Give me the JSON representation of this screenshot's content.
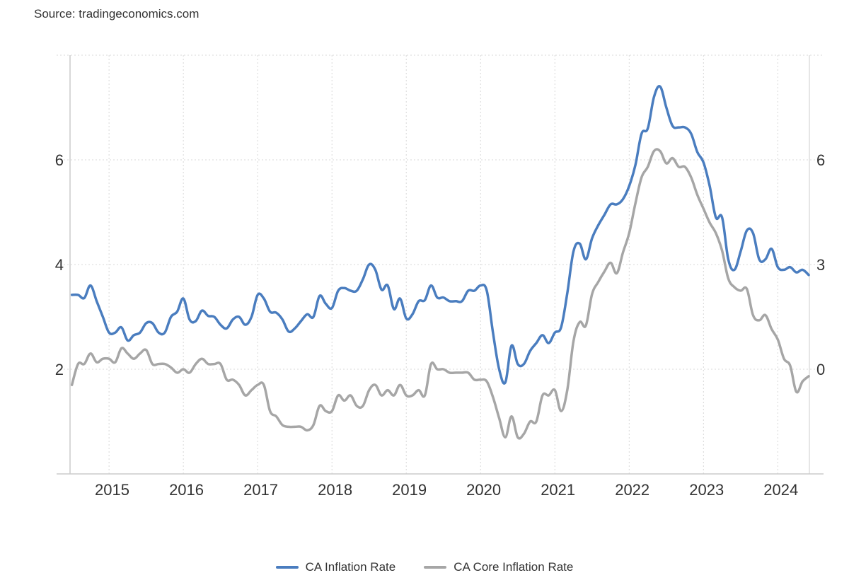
{
  "source": "Source: tradingeconomics.com",
  "colors": {
    "primary": "#4a7dbf",
    "secondary": "#a6a6a6",
    "grid": "#d8d8d8",
    "axis": "#cccccc"
  },
  "chart_data": {
    "type": "line",
    "title": "",
    "xlabel": "",
    "ylabel": "",
    "x_ticks": [
      "2015",
      "2016",
      "2017",
      "2018",
      "2019",
      "2020",
      "2021",
      "2022",
      "2023",
      "2024"
    ],
    "y_left_ticks": [
      "2",
      "4",
      "6"
    ],
    "y_right_ticks": [
      "0",
      "3",
      "6"
    ],
    "y_left_range": [
      0,
      8
    ],
    "y_right_range": [
      -3,
      9
    ],
    "x_range": [
      "2014-07",
      "2024-06"
    ],
    "grid": true,
    "legend_position": "bottom-center",
    "series": [
      {
        "name": "CA Inflation Rate",
        "axis": "left",
        "color": "#4a7dbf",
        "points": [
          [
            "2014-07",
            3.42
          ],
          [
            "2014-08",
            3.42
          ],
          [
            "2014-09",
            3.36
          ],
          [
            "2014-10",
            3.6
          ],
          [
            "2014-11",
            3.3
          ],
          [
            "2014-12",
            3.0
          ],
          [
            "2015-01",
            2.7
          ],
          [
            "2015-02",
            2.7
          ],
          [
            "2015-03",
            2.8
          ],
          [
            "2015-04",
            2.55
          ],
          [
            "2015-05",
            2.65
          ],
          [
            "2015-06",
            2.7
          ],
          [
            "2015-07",
            2.88
          ],
          [
            "2015-08",
            2.88
          ],
          [
            "2015-09",
            2.7
          ],
          [
            "2015-10",
            2.7
          ],
          [
            "2015-11",
            3.0
          ],
          [
            "2015-12",
            3.1
          ],
          [
            "2016-01",
            3.35
          ],
          [
            "2016-02",
            2.95
          ],
          [
            "2016-03",
            2.92
          ],
          [
            "2016-04",
            3.12
          ],
          [
            "2016-05",
            3.02
          ],
          [
            "2016-06",
            3.0
          ],
          [
            "2016-07",
            2.85
          ],
          [
            "2016-08",
            2.78
          ],
          [
            "2016-09",
            2.95
          ],
          [
            "2016-10",
            3.0
          ],
          [
            "2016-11",
            2.85
          ],
          [
            "2016-12",
            3.0
          ],
          [
            "2017-01",
            3.42
          ],
          [
            "2017-02",
            3.35
          ],
          [
            "2017-03",
            3.1
          ],
          [
            "2017-04",
            3.08
          ],
          [
            "2017-05",
            2.95
          ],
          [
            "2017-06",
            2.72
          ],
          [
            "2017-07",
            2.78
          ],
          [
            "2017-08",
            2.92
          ],
          [
            "2017-09",
            3.05
          ],
          [
            "2017-10",
            3.0
          ],
          [
            "2017-11",
            3.4
          ],
          [
            "2017-12",
            3.25
          ],
          [
            "2018-01",
            3.17
          ],
          [
            "2018-02",
            3.5
          ],
          [
            "2018-03",
            3.55
          ],
          [
            "2018-04",
            3.5
          ],
          [
            "2018-05",
            3.5
          ],
          [
            "2018-06",
            3.72
          ],
          [
            "2018-07",
            4.0
          ],
          [
            "2018-08",
            3.9
          ],
          [
            "2018-09",
            3.52
          ],
          [
            "2018-10",
            3.6
          ],
          [
            "2018-11",
            3.15
          ],
          [
            "2018-12",
            3.35
          ],
          [
            "2019-01",
            2.97
          ],
          [
            "2019-02",
            3.05
          ],
          [
            "2019-03",
            3.3
          ],
          [
            "2019-04",
            3.32
          ],
          [
            "2019-05",
            3.6
          ],
          [
            "2019-06",
            3.37
          ],
          [
            "2019-07",
            3.37
          ],
          [
            "2019-08",
            3.3
          ],
          [
            "2019-09",
            3.3
          ],
          [
            "2019-10",
            3.3
          ],
          [
            "2019-11",
            3.5
          ],
          [
            "2019-12",
            3.5
          ],
          [
            "2020-01",
            3.6
          ],
          [
            "2020-02",
            3.5
          ],
          [
            "2020-03",
            2.7
          ],
          [
            "2020-04",
            2.0
          ],
          [
            "2020-05",
            1.75
          ],
          [
            "2020-06",
            2.45
          ],
          [
            "2020-07",
            2.1
          ],
          [
            "2020-08",
            2.1
          ],
          [
            "2020-09",
            2.35
          ],
          [
            "2020-10",
            2.5
          ],
          [
            "2020-11",
            2.65
          ],
          [
            "2020-12",
            2.5
          ],
          [
            "2021-01",
            2.7
          ],
          [
            "2021-02",
            2.8
          ],
          [
            "2021-03",
            3.45
          ],
          [
            "2021-04",
            4.25
          ],
          [
            "2021-05",
            4.4
          ],
          [
            "2021-06",
            4.1
          ],
          [
            "2021-07",
            4.5
          ],
          [
            "2021-08",
            4.75
          ],
          [
            "2021-09",
            4.95
          ],
          [
            "2021-10",
            5.15
          ],
          [
            "2021-11",
            5.15
          ],
          [
            "2021-12",
            5.25
          ],
          [
            "2022-01",
            5.5
          ],
          [
            "2022-02",
            5.9
          ],
          [
            "2022-03",
            6.5
          ],
          [
            "2022-04",
            6.6
          ],
          [
            "2022-05",
            7.2
          ],
          [
            "2022-06",
            7.4
          ],
          [
            "2022-07",
            7.0
          ],
          [
            "2022-08",
            6.65
          ],
          [
            "2022-09",
            6.62
          ],
          [
            "2022-10",
            6.62
          ],
          [
            "2022-11",
            6.5
          ],
          [
            "2022-12",
            6.15
          ],
          [
            "2023-01",
            5.95
          ],
          [
            "2023-02",
            5.5
          ],
          [
            "2023-03",
            4.9
          ],
          [
            "2023-04",
            4.9
          ],
          [
            "2023-05",
            4.1
          ],
          [
            "2023-06",
            3.9
          ],
          [
            "2023-07",
            4.25
          ],
          [
            "2023-08",
            4.65
          ],
          [
            "2023-09",
            4.6
          ],
          [
            "2023-10",
            4.1
          ],
          [
            "2023-11",
            4.1
          ],
          [
            "2023-12",
            4.3
          ],
          [
            "2024-01",
            3.95
          ],
          [
            "2024-02",
            3.9
          ],
          [
            "2024-03",
            3.95
          ],
          [
            "2024-04",
            3.85
          ],
          [
            "2024-05",
            3.9
          ],
          [
            "2024-06",
            3.8
          ]
        ]
      },
      {
        "name": "CA Core Inflation Rate",
        "axis": "right",
        "color": "#a6a6a6",
        "points": [
          [
            "2014-07",
            -0.45
          ],
          [
            "2014-08",
            0.15
          ],
          [
            "2014-09",
            0.15
          ],
          [
            "2014-10",
            0.45
          ],
          [
            "2014-11",
            0.2
          ],
          [
            "2014-12",
            0.3
          ],
          [
            "2015-01",
            0.3
          ],
          [
            "2015-02",
            0.2
          ],
          [
            "2015-03",
            0.6
          ],
          [
            "2015-04",
            0.45
          ],
          [
            "2015-05",
            0.3
          ],
          [
            "2015-06",
            0.45
          ],
          [
            "2015-07",
            0.55
          ],
          [
            "2015-08",
            0.15
          ],
          [
            "2015-09",
            0.15
          ],
          [
            "2015-10",
            0.15
          ],
          [
            "2015-11",
            0.05
          ],
          [
            "2015-12",
            -0.1
          ],
          [
            "2016-01",
            0.0
          ],
          [
            "2016-02",
            -0.1
          ],
          [
            "2016-03",
            0.15
          ],
          [
            "2016-04",
            0.3
          ],
          [
            "2016-05",
            0.15
          ],
          [
            "2016-06",
            0.15
          ],
          [
            "2016-07",
            0.15
          ],
          [
            "2016-08",
            -0.3
          ],
          [
            "2016-09",
            -0.3
          ],
          [
            "2016-10",
            -0.45
          ],
          [
            "2016-11",
            -0.75
          ],
          [
            "2016-12",
            -0.6
          ],
          [
            "2017-01",
            -0.45
          ],
          [
            "2017-02",
            -0.45
          ],
          [
            "2017-03",
            -1.2
          ],
          [
            "2017-04",
            -1.35
          ],
          [
            "2017-05",
            -1.6
          ],
          [
            "2017-06",
            -1.65
          ],
          [
            "2017-07",
            -1.65
          ],
          [
            "2017-08",
            -1.65
          ],
          [
            "2017-09",
            -1.75
          ],
          [
            "2017-10",
            -1.6
          ],
          [
            "2017-11",
            -1.05
          ],
          [
            "2017-12",
            -1.2
          ],
          [
            "2018-01",
            -1.2
          ],
          [
            "2018-02",
            -0.75
          ],
          [
            "2018-03",
            -0.9
          ],
          [
            "2018-04",
            -0.75
          ],
          [
            "2018-05",
            -1.05
          ],
          [
            "2018-06",
            -1.05
          ],
          [
            "2018-07",
            -0.6
          ],
          [
            "2018-08",
            -0.45
          ],
          [
            "2018-09",
            -0.75
          ],
          [
            "2018-10",
            -0.6
          ],
          [
            "2018-11",
            -0.75
          ],
          [
            "2018-12",
            -0.45
          ],
          [
            "2019-01",
            -0.75
          ],
          [
            "2019-02",
            -0.75
          ],
          [
            "2019-03",
            -0.6
          ],
          [
            "2019-04",
            -0.75
          ],
          [
            "2019-05",
            0.15
          ],
          [
            "2019-06",
            0.0
          ],
          [
            "2019-07",
            0.0
          ],
          [
            "2019-08",
            -0.1
          ],
          [
            "2019-09",
            -0.1
          ],
          [
            "2019-10",
            -0.1
          ],
          [
            "2019-11",
            -0.1
          ],
          [
            "2019-12",
            -0.3
          ],
          [
            "2020-01",
            -0.3
          ],
          [
            "2020-02",
            -0.35
          ],
          [
            "2020-03",
            -0.8
          ],
          [
            "2020-04",
            -1.4
          ],
          [
            "2020-05",
            -1.95
          ],
          [
            "2020-06",
            -1.35
          ],
          [
            "2020-07",
            -1.95
          ],
          [
            "2020-08",
            -1.85
          ],
          [
            "2020-09",
            -1.5
          ],
          [
            "2020-10",
            -1.5
          ],
          [
            "2020-11",
            -0.75
          ],
          [
            "2020-12",
            -0.75
          ],
          [
            "2021-01",
            -0.6
          ],
          [
            "2021-02",
            -1.2
          ],
          [
            "2021-03",
            -0.6
          ],
          [
            "2021-04",
            0.8
          ],
          [
            "2021-05",
            1.35
          ],
          [
            "2021-06",
            1.25
          ],
          [
            "2021-07",
            2.15
          ],
          [
            "2021-08",
            2.5
          ],
          [
            "2021-09",
            2.8
          ],
          [
            "2021-10",
            3.05
          ],
          [
            "2021-11",
            2.75
          ],
          [
            "2021-12",
            3.35
          ],
          [
            "2022-01",
            3.9
          ],
          [
            "2022-02",
            4.75
          ],
          [
            "2022-03",
            5.5
          ],
          [
            "2022-04",
            5.8
          ],
          [
            "2022-05",
            6.25
          ],
          [
            "2022-06",
            6.25
          ],
          [
            "2022-07",
            5.9
          ],
          [
            "2022-08",
            6.05
          ],
          [
            "2022-09",
            5.8
          ],
          [
            "2022-10",
            5.8
          ],
          [
            "2022-11",
            5.5
          ],
          [
            "2022-12",
            5.0
          ],
          [
            "2023-01",
            4.6
          ],
          [
            "2023-02",
            4.2
          ],
          [
            "2023-03",
            3.9
          ],
          [
            "2023-04",
            3.4
          ],
          [
            "2023-05",
            2.6
          ],
          [
            "2023-06",
            2.35
          ],
          [
            "2023-07",
            2.25
          ],
          [
            "2023-08",
            2.3
          ],
          [
            "2023-09",
            1.55
          ],
          [
            "2023-10",
            1.4
          ],
          [
            "2023-11",
            1.55
          ],
          [
            "2023-12",
            1.15
          ],
          [
            "2024-01",
            0.85
          ],
          [
            "2024-02",
            0.3
          ],
          [
            "2024-03",
            0.1
          ],
          [
            "2024-04",
            -0.65
          ],
          [
            "2024-05",
            -0.35
          ],
          [
            "2024-06",
            -0.2
          ]
        ]
      }
    ]
  }
}
